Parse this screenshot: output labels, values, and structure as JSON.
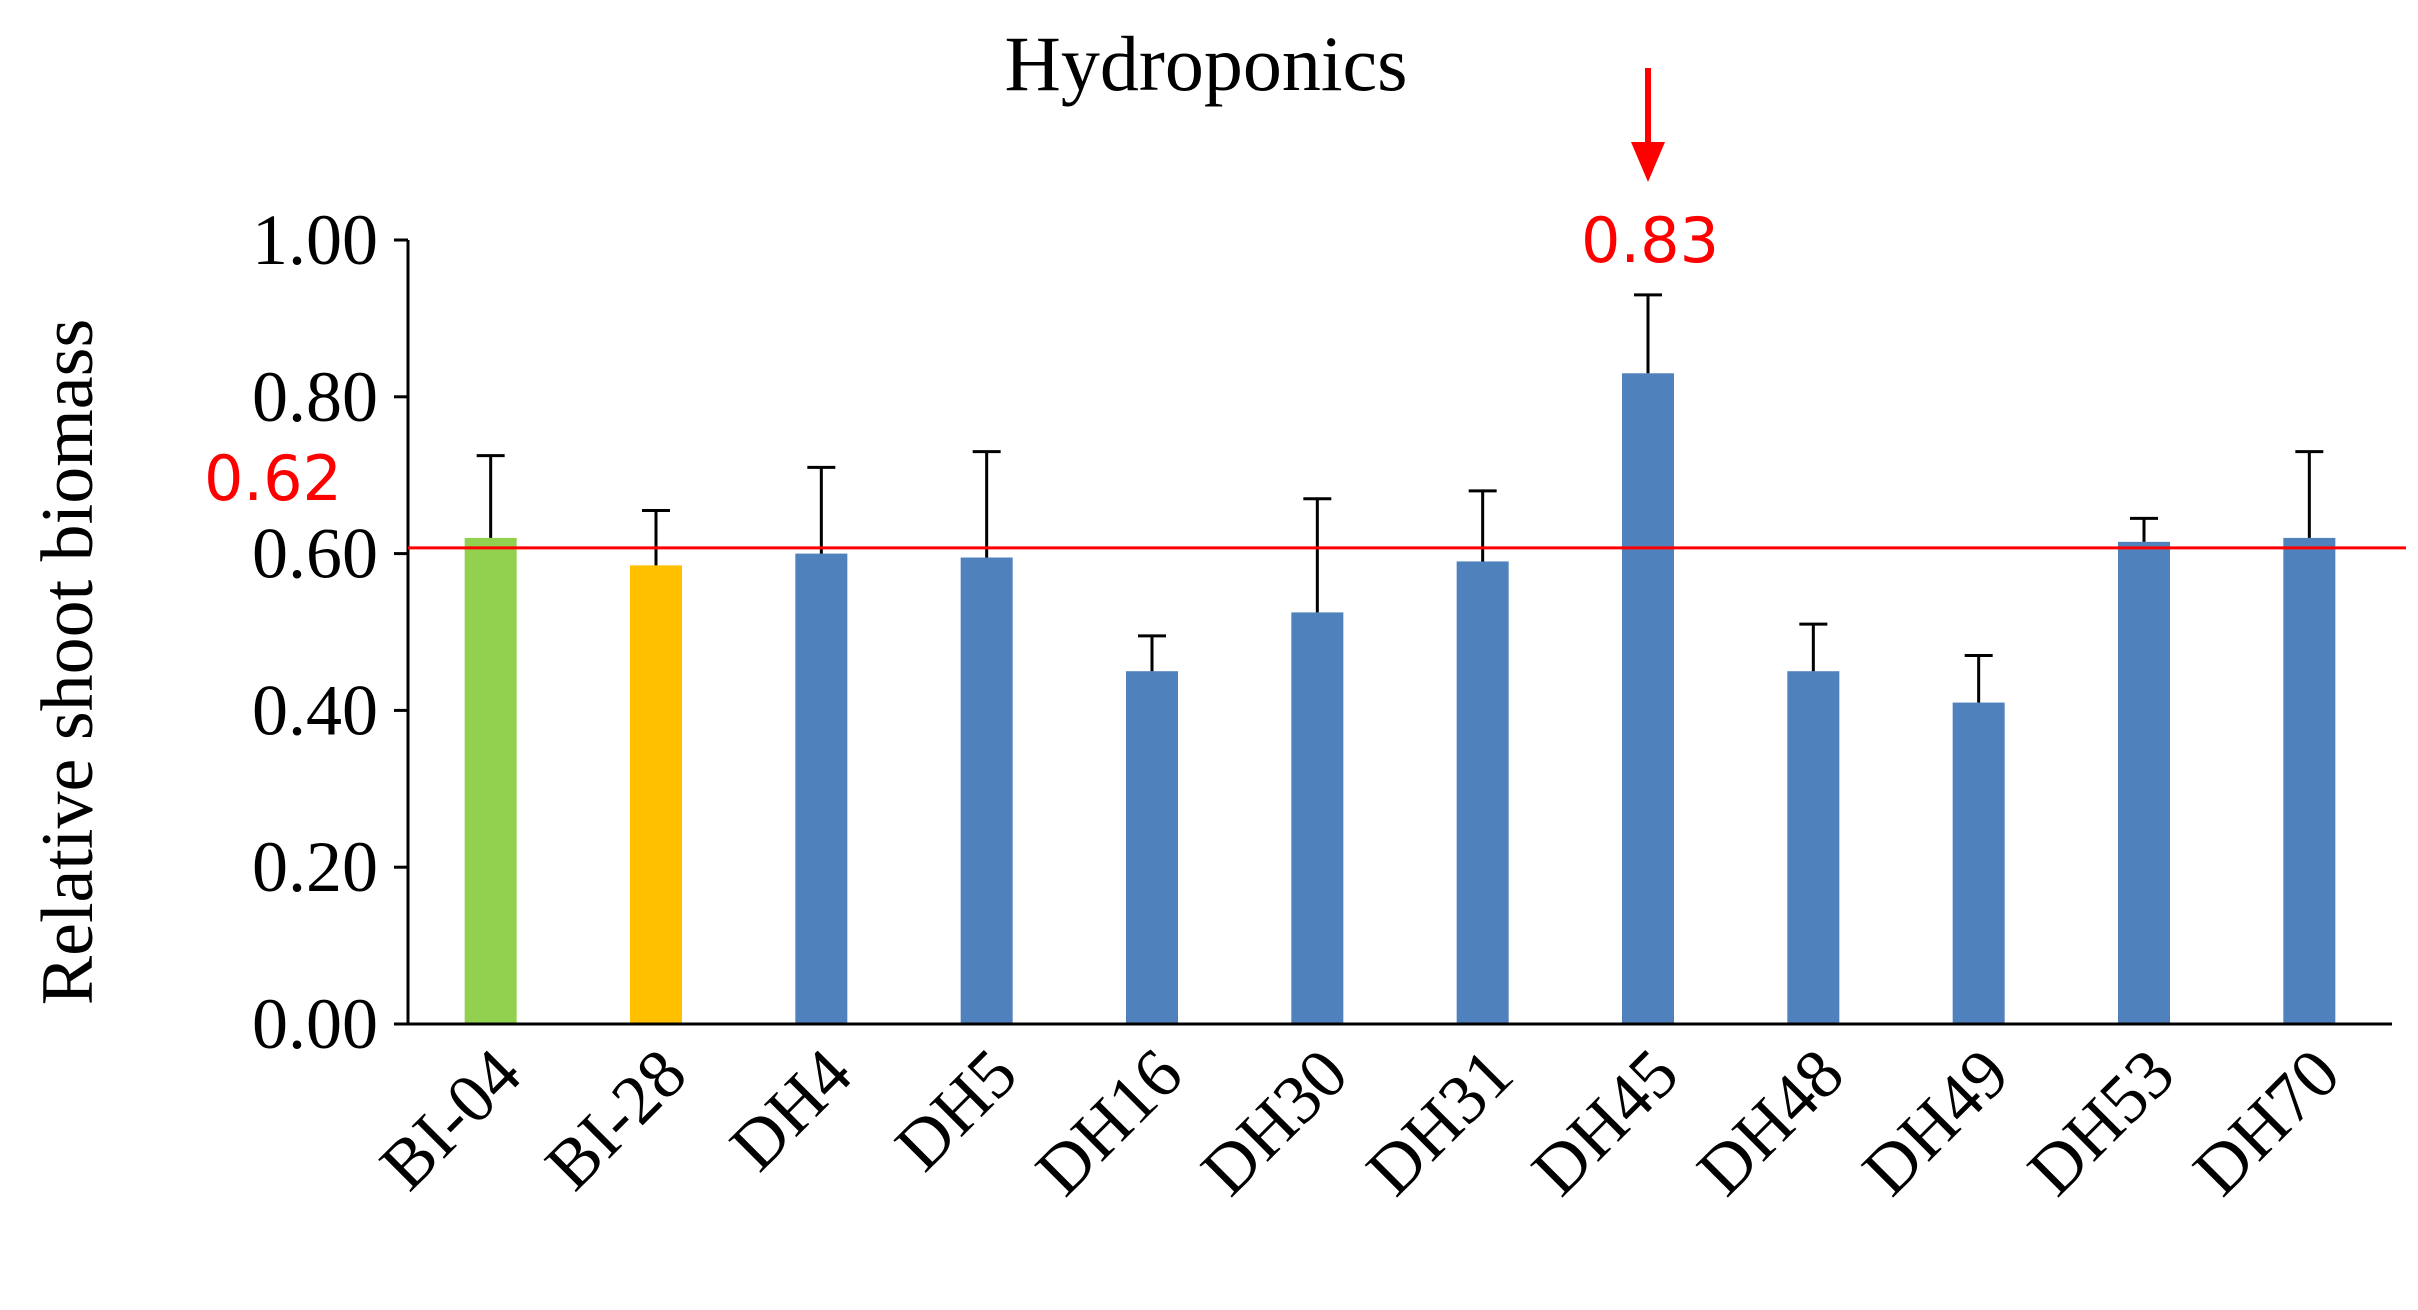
{
  "chart_data": {
    "type": "bar",
    "title": "Hydroponics",
    "xlabel": "",
    "ylabel": "Relative shoot biomass",
    "ylim": [
      0,
      1.0
    ],
    "yticks": [
      "0.00",
      "0.20",
      "0.40",
      "0.60",
      "0.80",
      "1.00"
    ],
    "yticks_values": [
      0,
      0.2,
      0.4,
      0.6,
      0.8,
      1.0
    ],
    "grid": false,
    "categories": [
      "BI-04",
      "BI-28",
      "DH4",
      "DH5",
      "DH16",
      "DH30",
      "DH31",
      "DH45",
      "DH48",
      "DH49",
      "DH53",
      "DH70"
    ],
    "values": [
      0.62,
      0.585,
      0.6,
      0.595,
      0.45,
      0.525,
      0.59,
      0.83,
      0.45,
      0.41,
      0.615,
      0.62
    ],
    "errors": [
      0.105,
      0.07,
      0.11,
      0.135,
      0.045,
      0.145,
      0.09,
      0.1,
      0.06,
      0.06,
      0.03,
      0.11
    ],
    "bar_colors": [
      "#92D050",
      "#FFC000",
      "#4F81BD",
      "#4F81BD",
      "#4F81BD",
      "#4F81BD",
      "#4F81BD",
      "#4F81BD",
      "#4F81BD",
      "#4F81BD",
      "#4F81BD",
      "#4F81BD"
    ],
    "error_color": "#000000",
    "axis_color": "#000000",
    "reference_line": {
      "value": 0.62,
      "label": "0.62",
      "color": "#FF0000"
    },
    "highlight": {
      "category": "DH45",
      "label": "0.83",
      "color": "#FF0000",
      "marker": "down-arrow"
    }
  }
}
